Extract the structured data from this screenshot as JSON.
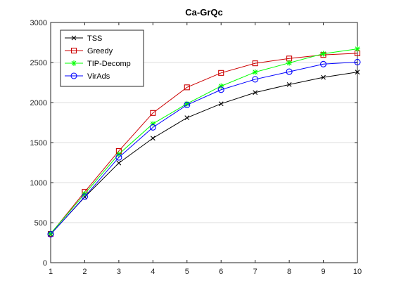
{
  "chart_data": {
    "type": "line",
    "title": "Ca-GrQc",
    "xlabel": "",
    "ylabel": "",
    "x": [
      1,
      2,
      3,
      4,
      5,
      6,
      7,
      8,
      9,
      10
    ],
    "xlim": [
      1,
      10
    ],
    "ylim": [
      0,
      3000
    ],
    "xticks": [
      "1",
      "2",
      "3",
      "4",
      "5",
      "6",
      "7",
      "8",
      "9",
      "10"
    ],
    "yticks": [
      "0",
      "500",
      "1000",
      "1500",
      "2000",
      "2500",
      "3000"
    ],
    "grid": "horizontal",
    "legend_position": "top-left",
    "series": [
      {
        "name": "TSS",
        "color": "#000000",
        "marker": "x",
        "values": [
          355,
          820,
          1245,
          1555,
          1810,
          1985,
          2125,
          2225,
          2315,
          2380
        ]
      },
      {
        "name": "Greedy",
        "color": "#cc0000",
        "marker": "square",
        "values": [
          360,
          885,
          1395,
          1870,
          2190,
          2370,
          2490,
          2550,
          2595,
          2615
        ]
      },
      {
        "name": "TIP-Decomp",
        "color": "#00ff00",
        "marker": "asterisk",
        "values": [
          365,
          860,
          1355,
          1735,
          1985,
          2205,
          2380,
          2495,
          2610,
          2670
        ]
      },
      {
        "name": "VirAds",
        "color": "#0000ff",
        "marker": "circle",
        "values": [
          355,
          825,
          1315,
          1690,
          1970,
          2160,
          2290,
          2385,
          2480,
          2505
        ]
      }
    ]
  }
}
